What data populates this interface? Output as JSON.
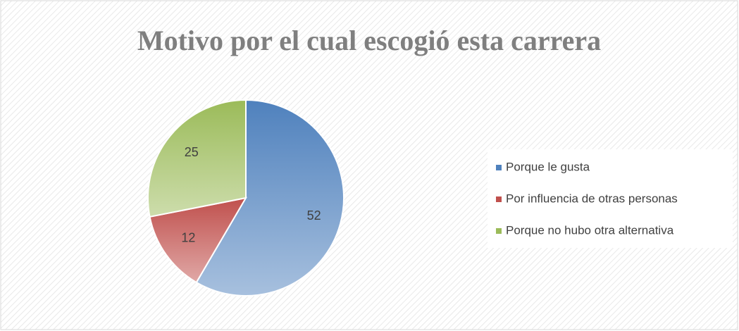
{
  "chart_data": {
    "type": "pie",
    "title": "Motivo por el cual escogió esta carrera",
    "categories": [
      "Porque le gusta",
      "Por influencia de otras personas",
      "Porque no hubo otra alternativa"
    ],
    "values": [
      52,
      12,
      25
    ],
    "colors": [
      "#4f81bd",
      "#c0504d",
      "#9bbb59"
    ],
    "legend": "right"
  }
}
